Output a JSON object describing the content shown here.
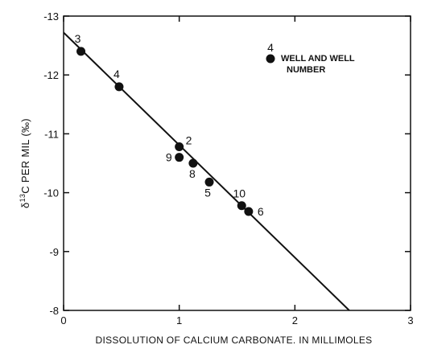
{
  "chart_data": {
    "type": "scatter",
    "xlabel": "DISSOLUTION OF CALCIUM CARBONATE. IN MILLIMOLES",
    "ylabel": "δ13C PER MIL (‰)",
    "ylabel_parts": {
      "delta": "δ",
      "superscript": "13",
      "rest": "C PER MIL (‰)"
    },
    "xlim": [
      0,
      3
    ],
    "ylim": [
      -8,
      -13
    ],
    "x_ticks": [
      0,
      1,
      2,
      3
    ],
    "x_tick_labels": [
      "0",
      "1",
      "2",
      "3"
    ],
    "y_ticks": [
      -13,
      -12,
      -11,
      -10,
      -9,
      -8
    ],
    "y_tick_labels": [
      "-13",
      "-12",
      "-11",
      "-10",
      "-9",
      "-8"
    ],
    "grid": false,
    "points": [
      {
        "label": "3",
        "x": 0.15,
        "y": -12.4
      },
      {
        "label": "4",
        "x": 0.48,
        "y": -11.8
      },
      {
        "label": "2",
        "x": 1.0,
        "y": -10.78
      },
      {
        "label": "9",
        "x": 1.0,
        "y": -10.6
      },
      {
        "label": "8",
        "x": 1.12,
        "y": -10.5
      },
      {
        "label": "5",
        "x": 1.26,
        "y": -10.18
      },
      {
        "label": "10",
        "x": 1.54,
        "y": -9.78
      },
      {
        "label": "6",
        "x": 1.6,
        "y": -9.68
      }
    ],
    "trend_line": {
      "x": [
        0,
        2.47
      ],
      "y": [
        -12.72,
        -8.0
      ]
    },
    "legend": {
      "number": "4",
      "line1": "WELL AND WELL",
      "line2": "NUMBER",
      "placement": "top-right"
    }
  }
}
